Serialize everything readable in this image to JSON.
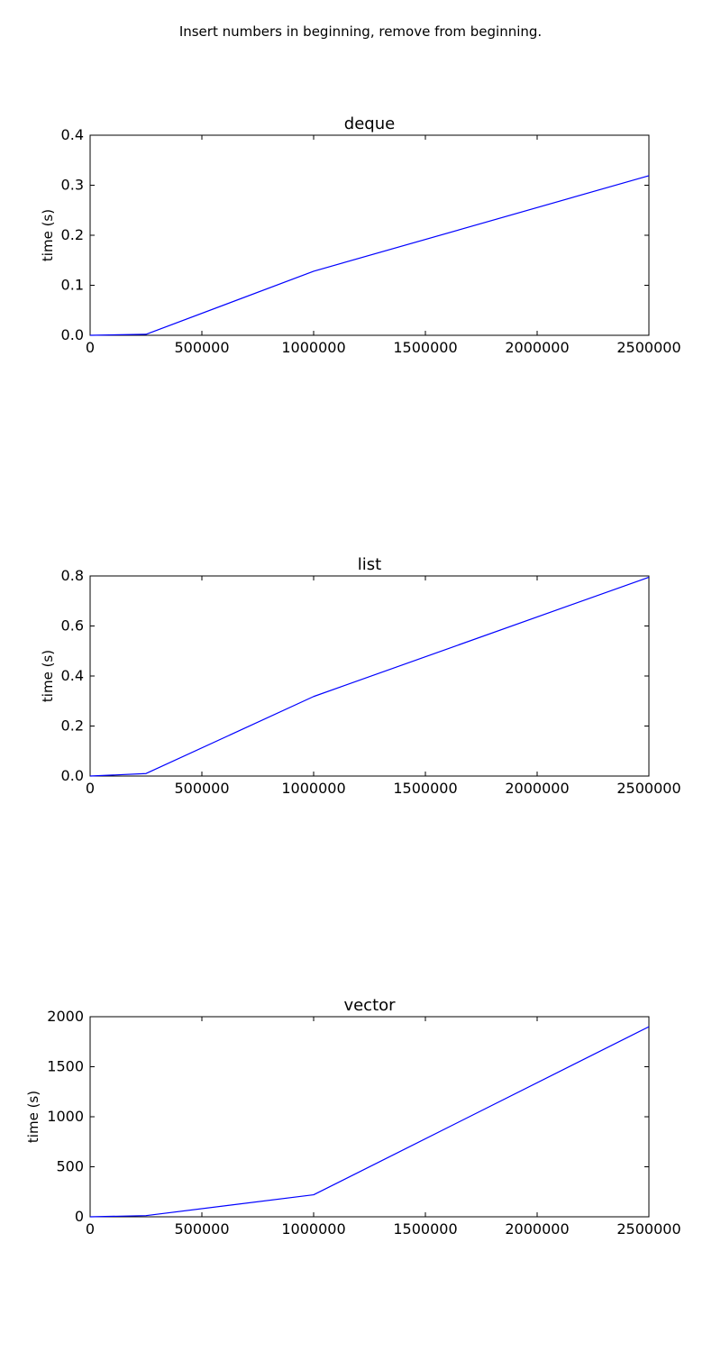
{
  "figure": {
    "title": "Insert numbers in beginning, remove from beginning."
  },
  "chart_data": [
    {
      "type": "line",
      "title": "deque",
      "xlabel": "",
      "ylabel": "time (s)",
      "xlim": [
        0,
        2500000
      ],
      "ylim": [
        0,
        0.4
      ],
      "x_ticks": [
        0,
        500000,
        1000000,
        1500000,
        2000000,
        2500000
      ],
      "y_ticks": [
        0.0,
        0.1,
        0.2,
        0.3,
        0.4
      ],
      "x_tick_labels": [
        "0",
        "500000",
        "1000000",
        "1500000",
        "2000000",
        "2500000"
      ],
      "y_tick_labels": [
        "0.0",
        "0.1",
        "0.2",
        "0.3",
        "0.4"
      ],
      "grid": false,
      "series": [
        {
          "x": [
            0,
            250000,
            1000000,
            2500000
          ],
          "y": [
            0.0,
            0.002,
            0.128,
            0.319
          ],
          "color": "#0000ff"
        }
      ]
    },
    {
      "type": "line",
      "title": "list",
      "xlabel": "",
      "ylabel": "time (s)",
      "xlim": [
        0,
        2500000
      ],
      "ylim": [
        0,
        0.8
      ],
      "x_ticks": [
        0,
        500000,
        1000000,
        1500000,
        2000000,
        2500000
      ],
      "y_ticks": [
        0.0,
        0.2,
        0.4,
        0.6,
        0.8
      ],
      "x_tick_labels": [
        "0",
        "500000",
        "1000000",
        "1500000",
        "2000000",
        "2500000"
      ],
      "y_tick_labels": [
        "0.0",
        "0.2",
        "0.4",
        "0.6",
        "0.8"
      ],
      "grid": false,
      "series": [
        {
          "x": [
            0,
            250000,
            1000000,
            2500000
          ],
          "y": [
            0.0,
            0.01,
            0.318,
            0.795
          ],
          "color": "#0000ff"
        }
      ]
    },
    {
      "type": "line",
      "title": "vector",
      "xlabel": "",
      "ylabel": "time (s)",
      "xlim": [
        0,
        2500000
      ],
      "ylim": [
        0,
        2000
      ],
      "x_ticks": [
        0,
        500000,
        1000000,
        1500000,
        2000000,
        2500000
      ],
      "y_ticks": [
        0,
        500,
        1000,
        1500,
        2000
      ],
      "x_tick_labels": [
        "0",
        "500000",
        "1000000",
        "1500000",
        "2000000",
        "2500000"
      ],
      "y_tick_labels": [
        "0",
        "500",
        "1000",
        "1500",
        "2000"
      ],
      "grid": false,
      "series": [
        {
          "x": [
            0,
            250000,
            1000000,
            2500000
          ],
          "y": [
            0,
            12,
            220,
            1900
          ],
          "color": "#0000ff"
        }
      ]
    }
  ]
}
